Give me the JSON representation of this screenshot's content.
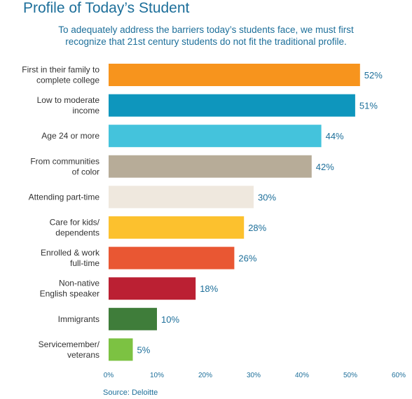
{
  "header": {
    "title": "Profile of Today’s Student",
    "subtitle_lines": [
      "To adequately address the barriers today’s students face, we must first",
      "recognize that 21st century students do not fit the traditional profile."
    ]
  },
  "source": "Source: Deloitte",
  "chart_data": {
    "type": "bar",
    "orientation": "horizontal",
    "categories": [
      [
        "First in their family to",
        "complete college"
      ],
      [
        "Low to moderate",
        "income"
      ],
      [
        "Age 24 or more"
      ],
      [
        "From communities",
        "of color"
      ],
      [
        "Attending part-time"
      ],
      [
        "Care for kids/",
        "dependents"
      ],
      [
        "Enrolled & work",
        "full-time"
      ],
      [
        "Non-native",
        "English speaker"
      ],
      [
        "Immigrants"
      ],
      [
        "Servicemember/",
        "veterans"
      ]
    ],
    "values": [
      52,
      51,
      44,
      42,
      30,
      28,
      26,
      18,
      10,
      5
    ],
    "value_labels": [
      "52%",
      "51%",
      "44%",
      "42%",
      "30%",
      "28%",
      "26%",
      "18%",
      "10%",
      "5%"
    ],
    "bar_colors": [
      "#f7941d",
      "#0e96bd",
      "#44c3dc",
      "#b7ac98",
      "#efe8de",
      "#fcc12e",
      "#e95733",
      "#bb2033",
      "#3f7d3a",
      "#7cc242"
    ],
    "xlim": [
      0,
      60
    ],
    "xticks": [
      0,
      10,
      20,
      30,
      40,
      50,
      60
    ],
    "xtick_labels": [
      "0%",
      "10%",
      "20%",
      "30%",
      "40%",
      "50%",
      "60%"
    ],
    "grid": false,
    "legend": "none",
    "text_color": "#1d6f9a",
    "label_color": "#333333"
  }
}
